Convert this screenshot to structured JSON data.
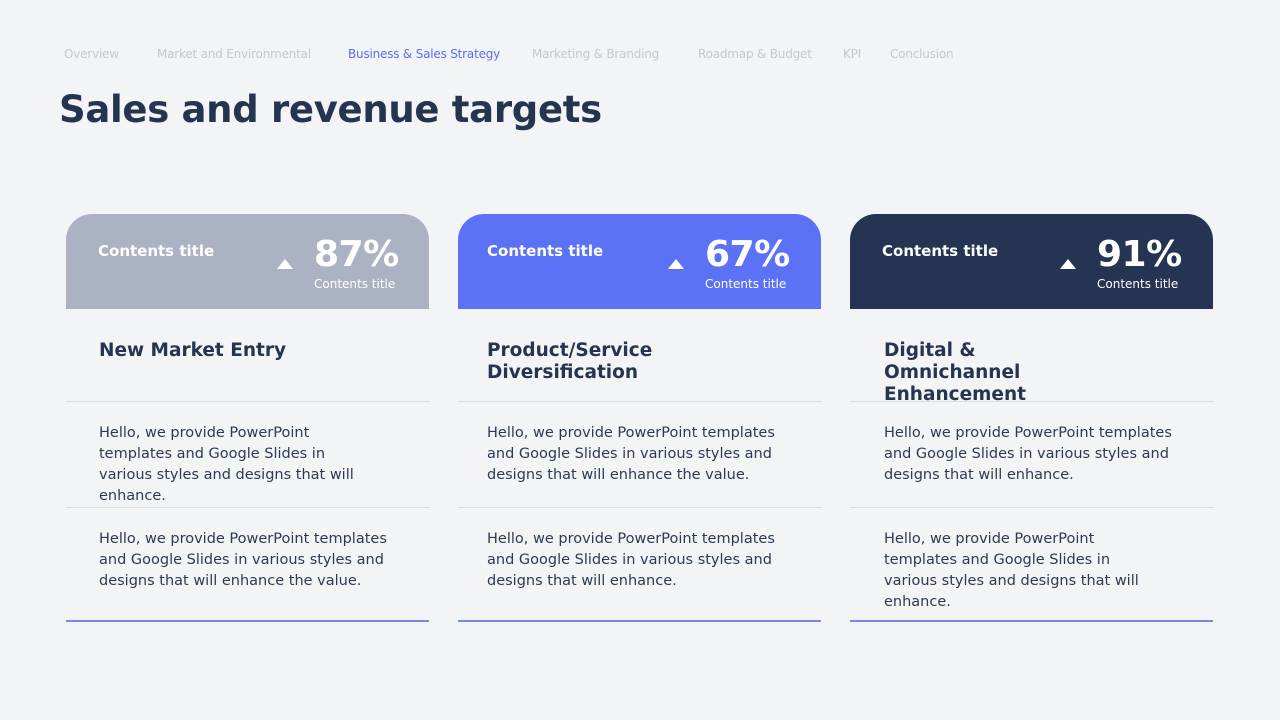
{
  "nav": {
    "items": [
      {
        "label": "Overview"
      },
      {
        "label": "Market and Environmental"
      },
      {
        "label": "Business & Sales Strategy"
      },
      {
        "label": "Marketing & Branding"
      },
      {
        "label": "Roadmap & Budget"
      },
      {
        "label": "KPI"
      },
      {
        "label": "Conclusion"
      }
    ]
  },
  "page": {
    "title": "Sales and revenue targets"
  },
  "cards": [
    {
      "header_title": "Contents  title",
      "percent": "87%",
      "percent_sub": "Contents title",
      "color": "#abb2c3",
      "name": "New Market Entry",
      "paragraphs": [
        "Hello, we provide PowerPoint templates and Google Slides in various styles and designs that will enhance.",
        "Hello, we provide PowerPoint templates and Google Slides in various styles and designs that will enhance the value."
      ]
    },
    {
      "header_title": "Contents  title",
      "percent": "67%",
      "percent_sub": "Contents title",
      "color": "#5b72f7",
      "name": "Product/Service Diversification",
      "paragraphs": [
        "Hello, we provide PowerPoint templates and Google Slides in various styles and designs that will enhance the value.",
        "Hello, we provide PowerPoint templates and Google Slides in various styles and designs that will enhance."
      ]
    },
    {
      "header_title": "Contents  title",
      "percent": "91%",
      "percent_sub": "Contents title",
      "color": "#253452",
      "name": "Digital & Omnichannel Enhancement",
      "paragraphs": [
        "Hello, we provide PowerPoint templates and Google Slides in various styles and designs that will enhance.",
        "Hello, we provide PowerPoint templates and Google Slides in various styles and designs that will enhance."
      ]
    }
  ]
}
